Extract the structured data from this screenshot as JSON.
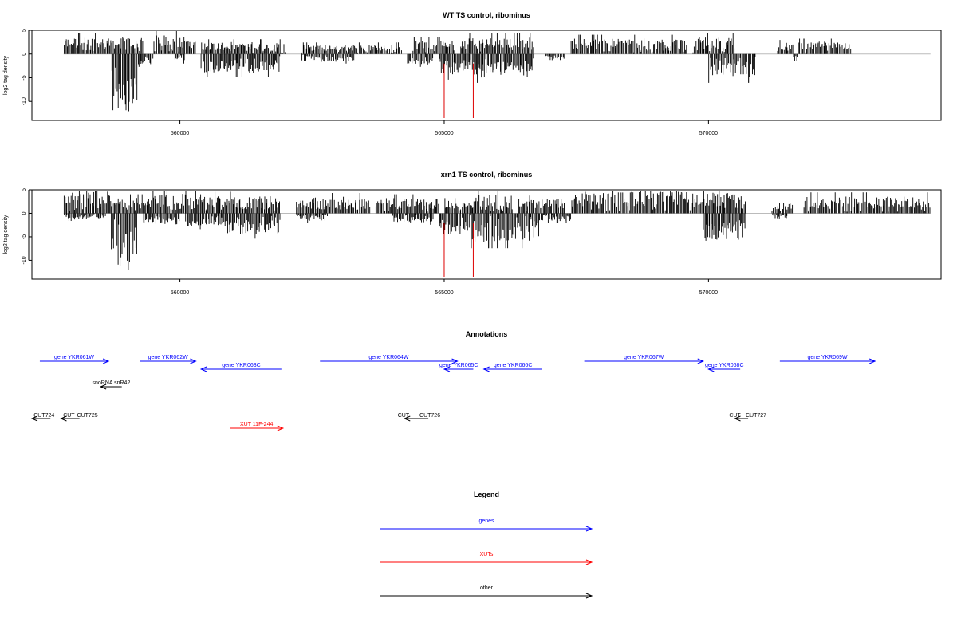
{
  "colors": {
    "genes": "#0000ff",
    "xuts": "#ff0000",
    "other": "#000000",
    "marker": "#dd0000",
    "baseline": "#bbbbbb"
  },
  "chart_data": [
    {
      "type": "bar",
      "title": "WT TS control, ribominus",
      "xlabel": "",
      "ylabel": "log2 tag density",
      "xlim": [
        557200,
        574400
      ],
      "ylim": [
        -14,
        5
      ],
      "xticks": [
        560000,
        565000,
        570000
      ],
      "xtick_labels": [
        "560000",
        "565000",
        "570000"
      ],
      "yticks": [
        5,
        0,
        -5,
        -10
      ],
      "ytick_labels": [
        "5",
        "0",
        "-5",
        "-10"
      ],
      "markers": [
        565000,
        565550
      ],
      "series": [
        {
          "strand": "plus",
          "segments": [
            {
              "start": 557800,
              "end": 559300,
              "level": 3.2
            },
            {
              "start": 559500,
              "end": 560300,
              "level": 3.6
            },
            {
              "start": 560400,
              "end": 562000,
              "level": 2.3
            },
            {
              "start": 562300,
              "end": 564200,
              "level": 1.8
            },
            {
              "start": 564400,
              "end": 565200,
              "level": 2.6
            },
            {
              "start": 565300,
              "end": 566700,
              "level": 3.2
            },
            {
              "start": 567400,
              "end": 569600,
              "level": 3.0
            },
            {
              "start": 569700,
              "end": 570500,
              "level": 3.2
            },
            {
              "start": 571300,
              "end": 571600,
              "level": 2.2
            },
            {
              "start": 571700,
              "end": 572700,
              "level": 2.4
            }
          ]
        },
        {
          "strand": "minus",
          "segments": [
            {
              "start": 558700,
              "end": 559200,
              "level": -11.5
            },
            {
              "start": 559200,
              "end": 559500,
              "level": -2.0
            },
            {
              "start": 559900,
              "end": 560100,
              "level": -1.5
            },
            {
              "start": 560400,
              "end": 561900,
              "level": -3.6
            },
            {
              "start": 562300,
              "end": 563300,
              "level": -1.5
            },
            {
              "start": 564300,
              "end": 564800,
              "level": -2.0
            },
            {
              "start": 564900,
              "end": 565500,
              "level": -4.0
            },
            {
              "start": 565500,
              "end": 566700,
              "level": -4.5
            },
            {
              "start": 566900,
              "end": 567300,
              "level": -1.2
            },
            {
              "start": 570000,
              "end": 570900,
              "level": -4.5
            },
            {
              "start": 571600,
              "end": 571700,
              "level": -1.5
            }
          ]
        }
      ]
    },
    {
      "type": "bar",
      "title": "xrn1 TS control, ribominus",
      "xlabel": "",
      "ylabel": "log2 tag density",
      "xlim": [
        557200,
        574400
      ],
      "ylim": [
        -14,
        5
      ],
      "xticks": [
        560000,
        565000,
        570000
      ],
      "xtick_labels": [
        "560000",
        "565000",
        "570000"
      ],
      "yticks": [
        5,
        0,
        -5,
        -10
      ],
      "ytick_labels": [
        "5",
        "0",
        "-5",
        "-10"
      ],
      "markers": [
        565000,
        565550
      ],
      "series": [
        {
          "strand": "plus",
          "segments": [
            {
              "start": 557800,
              "end": 558700,
              "level": 4.2
            },
            {
              "start": 558700,
              "end": 559400,
              "level": 3.0
            },
            {
              "start": 559400,
              "end": 560500,
              "level": 3.8
            },
            {
              "start": 560500,
              "end": 561900,
              "level": 3.4
            },
            {
              "start": 562200,
              "end": 563600,
              "level": 3.2
            },
            {
              "start": 563700,
              "end": 564900,
              "level": 3.0
            },
            {
              "start": 565000,
              "end": 565600,
              "level": 2.4
            },
            {
              "start": 565600,
              "end": 566300,
              "level": 3.6
            },
            {
              "start": 566400,
              "end": 567300,
              "level": 2.8
            },
            {
              "start": 567400,
              "end": 569700,
              "level": 4.2
            },
            {
              "start": 569700,
              "end": 570700,
              "level": 4.0
            },
            {
              "start": 571200,
              "end": 571600,
              "level": 2.0
            },
            {
              "start": 571800,
              "end": 574200,
              "level": 3.3
            }
          ]
        },
        {
          "strand": "minus",
          "segments": [
            {
              "start": 557800,
              "end": 558600,
              "level": -1.2
            },
            {
              "start": 558700,
              "end": 559200,
              "level": -11.0
            },
            {
              "start": 559300,
              "end": 560000,
              "level": -2.2
            },
            {
              "start": 560100,
              "end": 560900,
              "level": -2.5
            },
            {
              "start": 560900,
              "end": 561900,
              "level": -4.0
            },
            {
              "start": 562200,
              "end": 562800,
              "level": -1.5
            },
            {
              "start": 564000,
              "end": 564800,
              "level": -1.8
            },
            {
              "start": 564900,
              "end": 565500,
              "level": -4.0
            },
            {
              "start": 565500,
              "end": 566800,
              "level": -5.5
            },
            {
              "start": 566800,
              "end": 567400,
              "level": -1.5
            },
            {
              "start": 569900,
              "end": 570700,
              "level": -5.5
            },
            {
              "start": 571200,
              "end": 571500,
              "level": -1.0
            }
          ]
        }
      ]
    }
  ],
  "annotations": {
    "title": "Annotations",
    "genes": [
      {
        "label": "gene YKR061W",
        "start": 557350,
        "end": 558650,
        "dir": "right",
        "row": 0
      },
      {
        "label": "gene YKR062W",
        "start": 559250,
        "end": 560300,
        "dir": "right",
        "row": 0
      },
      {
        "label": "gene YKR063C",
        "start": 560400,
        "end": 561920,
        "dir": "left",
        "row": 1
      },
      {
        "label": "gene YKR064W",
        "start": 562650,
        "end": 565250,
        "dir": "right",
        "row": 0
      },
      {
        "label": "gene YKR065C",
        "start": 565000,
        "end": 565550,
        "dir": "left",
        "row": 1
      },
      {
        "label": "gene YKR066C",
        "start": 565750,
        "end": 566850,
        "dir": "left",
        "row": 1
      },
      {
        "label": "gene YKR067W",
        "start": 567650,
        "end": 569900,
        "dir": "right",
        "row": 0
      },
      {
        "label": "gene YKR068C",
        "start": 570000,
        "end": 570600,
        "dir": "left",
        "row": 1
      },
      {
        "label": "gene YKR069W",
        "start": 571350,
        "end": 573150,
        "dir": "right",
        "row": 0
      }
    ],
    "snorna": [
      {
        "label": "snoRNA snR42",
        "start": 558500,
        "end": 558900,
        "dir": "left"
      }
    ],
    "cuts": [
      {
        "label": "CUT724",
        "start": 557200,
        "end": 557550,
        "dir": "left",
        "label_pos": 557430
      },
      {
        "label": "CUT",
        "start": 557200,
        "end": 557550,
        "dir": "none",
        "label_pos": 557900
      },
      {
        "label": "CUT725",
        "start": 557750,
        "end": 558100,
        "dir": "left",
        "label_pos": 558250
      },
      {
        "label": "CUT",
        "start": 564420,
        "end": 564420,
        "dir": "none",
        "label_pos": 564230
      },
      {
        "label": "CUT726",
        "start": 564250,
        "end": 564700,
        "dir": "left",
        "label_pos": 564730
      },
      {
        "label": "CUT",
        "start": 570450,
        "end": 570450,
        "dir": "none",
        "label_pos": 570500
      },
      {
        "label": "CUT727",
        "start": 570500,
        "end": 570750,
        "dir": "left",
        "label_pos": 570900
      }
    ],
    "xuts": [
      {
        "label": "XUT 11F-244",
        "start": 560950,
        "end": 561950,
        "dir": "right"
      }
    ]
  },
  "legend": {
    "title": "Legend",
    "items": [
      {
        "label": "genes",
        "color_key": "genes"
      },
      {
        "label": "XUTs",
        "color_key": "xuts"
      },
      {
        "label": "other",
        "color_key": "other"
      }
    ]
  }
}
